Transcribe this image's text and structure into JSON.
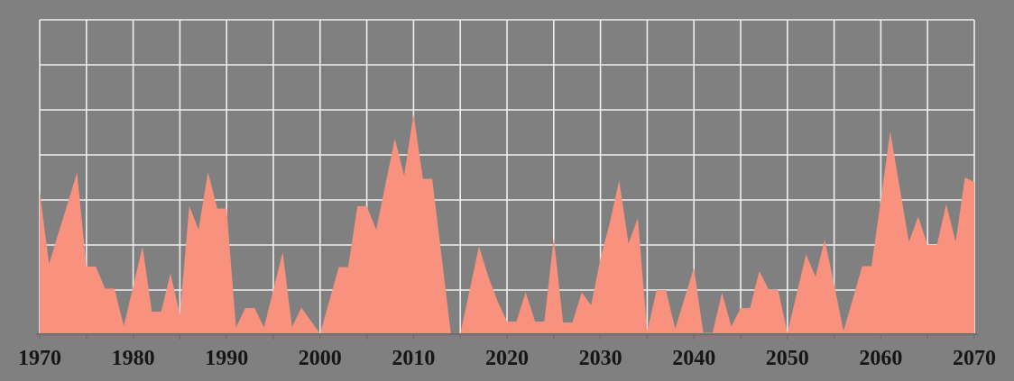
{
  "chart_data": {
    "type": "area",
    "title": "",
    "xlabel": "",
    "ylabel": "",
    "legend": "none",
    "grid": "on",
    "y_axis_labels": "none",
    "xlim": [
      1970,
      2070
    ],
    "ylim": [
      0,
      7
    ],
    "x_tick_step_years": 10,
    "grid_x_step_years": 5,
    "grid_y_step": 1,
    "x_tick_labels": [
      "1970",
      "1980",
      "1990",
      "2000",
      "2010",
      "2020",
      "2030",
      "2040",
      "2050",
      "2060",
      "2070"
    ],
    "x": [
      1970,
      1971,
      1972,
      1973,
      1974,
      1975,
      1976,
      1977,
      1978,
      1979,
      1980,
      1981,
      1982,
      1983,
      1984,
      1985,
      1986,
      1987,
      1988,
      1989,
      1990,
      1991,
      1992,
      1993,
      1994,
      1995,
      1996,
      1997,
      1998,
      1999,
      2000,
      2001,
      2002,
      2003,
      2004,
      2005,
      2006,
      2007,
      2008,
      2009,
      2010,
      2011,
      2012,
      2013,
      2014,
      2015,
      2016,
      2017,
      2018,
      2019,
      2020,
      2021,
      2022,
      2023,
      2024,
      2025,
      2026,
      2027,
      2028,
      2029,
      2030,
      2031,
      2032,
      2033,
      2034,
      2035,
      2036,
      2037,
      2038,
      2039,
      2040,
      2041,
      2042,
      2043,
      2044,
      2045,
      2046,
      2047,
      2048,
      2049,
      2050,
      2051,
      2052,
      2053,
      2054,
      2055,
      2056,
      2057,
      2058,
      2059,
      2060,
      2061,
      2062,
      2063,
      2064,
      2065,
      2066,
      2067,
      2068,
      2069,
      2070
    ],
    "values": [
      3.18,
      1.58,
      2.26,
      2.93,
      3.61,
      1.52,
      1.52,
      1.03,
      1.03,
      0.2,
      1.08,
      1.97,
      0.52,
      0.52,
      1.37,
      0.45,
      2.87,
      2.34,
      3.62,
      2.81,
      2.81,
      0.17,
      0.6,
      0.6,
      0.17,
      1.0,
      1.84,
      0.18,
      0.61,
      0.32,
      0.03,
      0.77,
      1.51,
      1.51,
      2.86,
      2.86,
      2.34,
      3.35,
      4.36,
      3.54,
      4.91,
      3.47,
      3.47,
      1.75,
      0.03,
      0.03,
      1.0,
      1.97,
      1.3,
      0.75,
      0.3,
      0.3,
      0.95,
      0.3,
      0.3,
      2.15,
      0.28,
      0.28,
      0.95,
      0.66,
      1.7,
      2.5,
      3.43,
      2.03,
      2.6,
      0.08,
      1.0,
      1.0,
      0.14,
      0.82,
      1.49,
      0.05,
      0.05,
      0.94,
      0.19,
      0.6,
      0.6,
      1.42,
      1.01,
      1.01,
      0.05,
      0.93,
      1.79,
      1.3,
      2.11,
      1.13,
      0.09,
      0.8,
      1.53,
      1.53,
      3.0,
      4.52,
      3.3,
      2.07,
      2.63,
      2.0,
      2.0,
      2.91,
      2.07,
      3.5,
      3.4
    ],
    "colors": {
      "background": "#808080",
      "area": "#F8917D",
      "gridline": "#EFEFEF",
      "axis_line": "#6F6F6F",
      "tick_label": "#161616"
    }
  }
}
